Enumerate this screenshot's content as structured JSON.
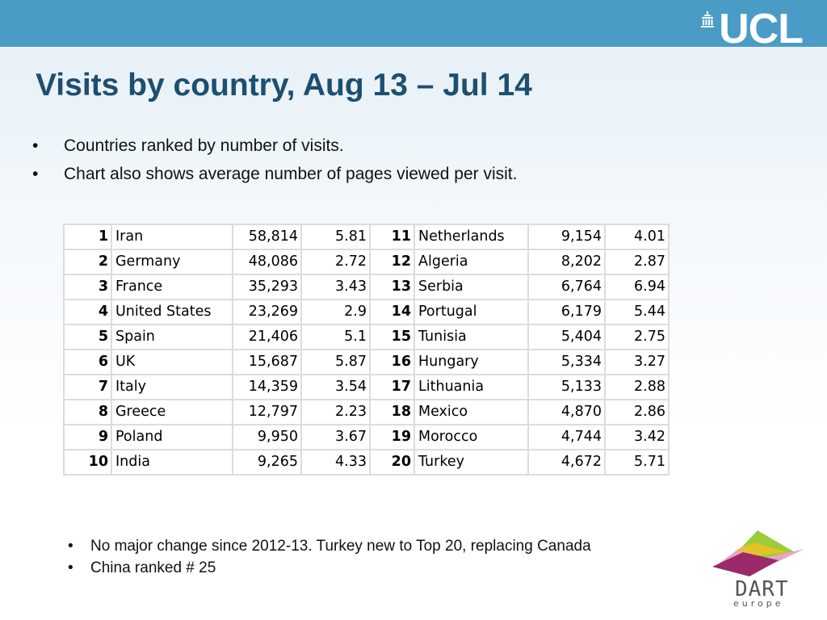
{
  "brand": {
    "logo_text": "UCL",
    "footer_logo_text": "DART",
    "footer_logo_subtext": "europe",
    "header_color": "#4a9cc7",
    "title_color": "#1d4f70"
  },
  "slide": {
    "title": "Visits by country, Aug 13 – Jul 14",
    "bullets_top": [
      "Countries ranked by number of visits.",
      "Chart also shows average number of pages viewed per visit."
    ],
    "bullets_bottom": [
      "No major change since 2012-13. Turkey new to Top 20, replacing Canada",
      "China ranked # 25"
    ]
  },
  "table": {
    "rows": [
      {
        "left": {
          "rank": "1",
          "country": "Iran",
          "visits": "58,814",
          "pages": "5.81"
        },
        "right": {
          "rank": "11",
          "country": "Netherlands",
          "visits": "9,154",
          "pages": "4.01"
        }
      },
      {
        "left": {
          "rank": "2",
          "country": "Germany",
          "visits": "48,086",
          "pages": "2.72"
        },
        "right": {
          "rank": "12",
          "country": "Algeria",
          "visits": "8,202",
          "pages": "2.87"
        }
      },
      {
        "left": {
          "rank": "3",
          "country": "France",
          "visits": "35,293",
          "pages": "3.43"
        },
        "right": {
          "rank": "13",
          "country": "Serbia",
          "visits": "6,764",
          "pages": "6.94"
        }
      },
      {
        "left": {
          "rank": "4",
          "country": "United States",
          "visits": "23,269",
          "pages": "2.9"
        },
        "right": {
          "rank": "14",
          "country": "Portugal",
          "visits": "6,179",
          "pages": "5.44"
        }
      },
      {
        "left": {
          "rank": "5",
          "country": "Spain",
          "visits": "21,406",
          "pages": "5.1"
        },
        "right": {
          "rank": "15",
          "country": "Tunisia",
          "visits": "5,404",
          "pages": "2.75"
        }
      },
      {
        "left": {
          "rank": "6",
          "country": "UK",
          "visits": "15,687",
          "pages": "5.87"
        },
        "right": {
          "rank": "16",
          "country": "Hungary",
          "visits": "5,334",
          "pages": "3.27"
        }
      },
      {
        "left": {
          "rank": "7",
          "country": "Italy",
          "visits": "14,359",
          "pages": "3.54"
        },
        "right": {
          "rank": "17",
          "country": "Lithuania",
          "visits": "5,133",
          "pages": "2.88"
        }
      },
      {
        "left": {
          "rank": "8",
          "country": "Greece",
          "visits": "12,797",
          "pages": "2.23"
        },
        "right": {
          "rank": "18",
          "country": "Mexico",
          "visits": "4,870",
          "pages": "2.86"
        }
      },
      {
        "left": {
          "rank": "9",
          "country": "Poland",
          "visits": "9,950",
          "pages": "3.67"
        },
        "right": {
          "rank": "19",
          "country": "Morocco",
          "visits": "4,744",
          "pages": "3.42"
        }
      },
      {
        "left": {
          "rank": "10",
          "country": "India",
          "visits": "9,265",
          "pages": "4.33"
        },
        "right": {
          "rank": "20",
          "country": "Turkey",
          "visits": "4,672",
          "pages": "5.71"
        }
      }
    ]
  }
}
